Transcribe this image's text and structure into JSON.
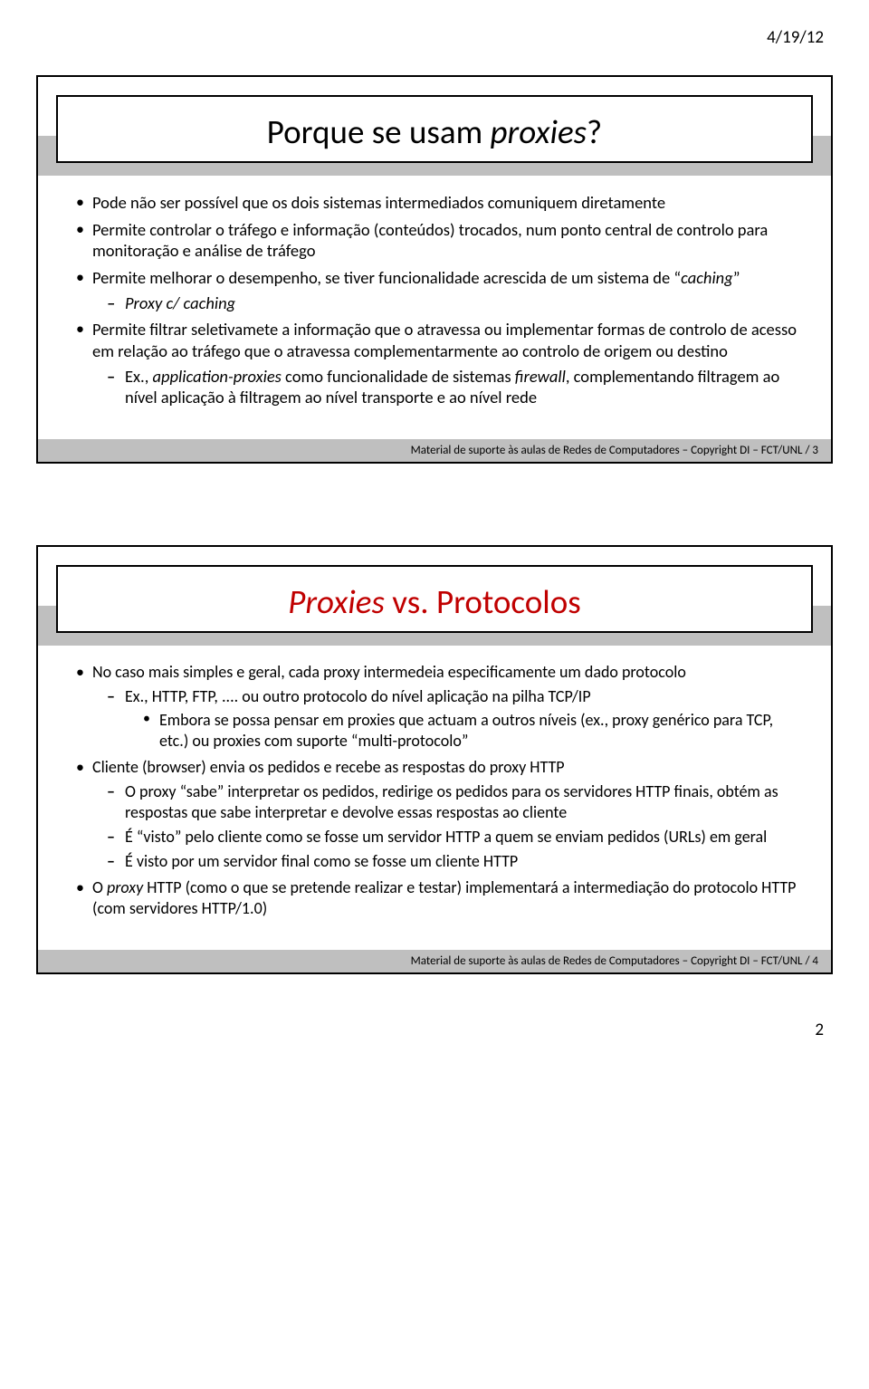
{
  "header_date": "4/19/12",
  "page_number": "2",
  "slide1": {
    "title_pre": "Porque se usam ",
    "title_italic": "proxies",
    "title_post": "?",
    "b1": "Pode não ser possível que os dois sistemas intermediados comuniquem diretamente",
    "b2": "Permite controlar o tráfego e informação (conteúdos) trocados, num ponto central de controlo para monitoração e análise de tráfego",
    "b3_pre": "Permite melhorar o desempenho, se tiver funcionalidade acrescida de um sistema de “",
    "b3_em": "caching",
    "b3_post": "”",
    "b3_s1": "Proxy c/ caching",
    "b4": "Permite filtrar seletivamete a informação que o atravessa ou implementar formas de controlo de acesso em relação ao tráfego que o atravessa complementarmente ao controlo de origem ou destino",
    "b4_s1_pre": "Ex., ",
    "b4_s1_em1": "application-proxies",
    "b4_s1_mid": " como funcionalidade de sistemas ",
    "b4_s1_em2": "firewall",
    "b4_s1_post": ", complementando filtragem ao nível aplicação à filtragem ao nível transporte e ao nível rede",
    "footer": "Material de suporte às aulas de Redes de Computadores – Copyright DI – FCT/UNL / 3"
  },
  "slide2": {
    "title_italic": "Proxies",
    "title_post": " vs. Protocolos",
    "b1": "No caso mais simples e geral, cada proxy intermedeia especificamente um dado protocolo",
    "b1_s1": "Ex., HTTP, FTP, .... ou outro protocolo do nível aplicação na pilha TCP/IP",
    "b1_s1_t1": "Embora se possa pensar em proxies que actuam a outros níveis (ex., proxy genérico para TCP, etc.) ou proxies com suporte “multi-protocolo”",
    "b2": "Cliente (browser) envia os pedidos e recebe as respostas do proxy HTTP",
    "b2_s1": "O proxy “sabe” interpretar os pedidos, redirige os pedidos para os servidores HTTP finais, obtém as respostas que sabe interpretar e devolve essas respostas ao cliente",
    "b2_s2": "É “visto” pelo cliente como se fosse um servidor HTTP a quem se enviam pedidos (URLs) em geral",
    "b2_s3": "É visto por um servidor final como se fosse um cliente HTTP",
    "b3_pre": "O ",
    "b3_em": "proxy",
    "b3_post": " HTTP (como o que se pretende realizar e testar) implementará a intermediação do protocolo HTTP (com servidores HTTP/1.0)",
    "footer": "Material de suporte às aulas de Redes de Computadores – Copyright DI – FCT/UNL / 4"
  }
}
